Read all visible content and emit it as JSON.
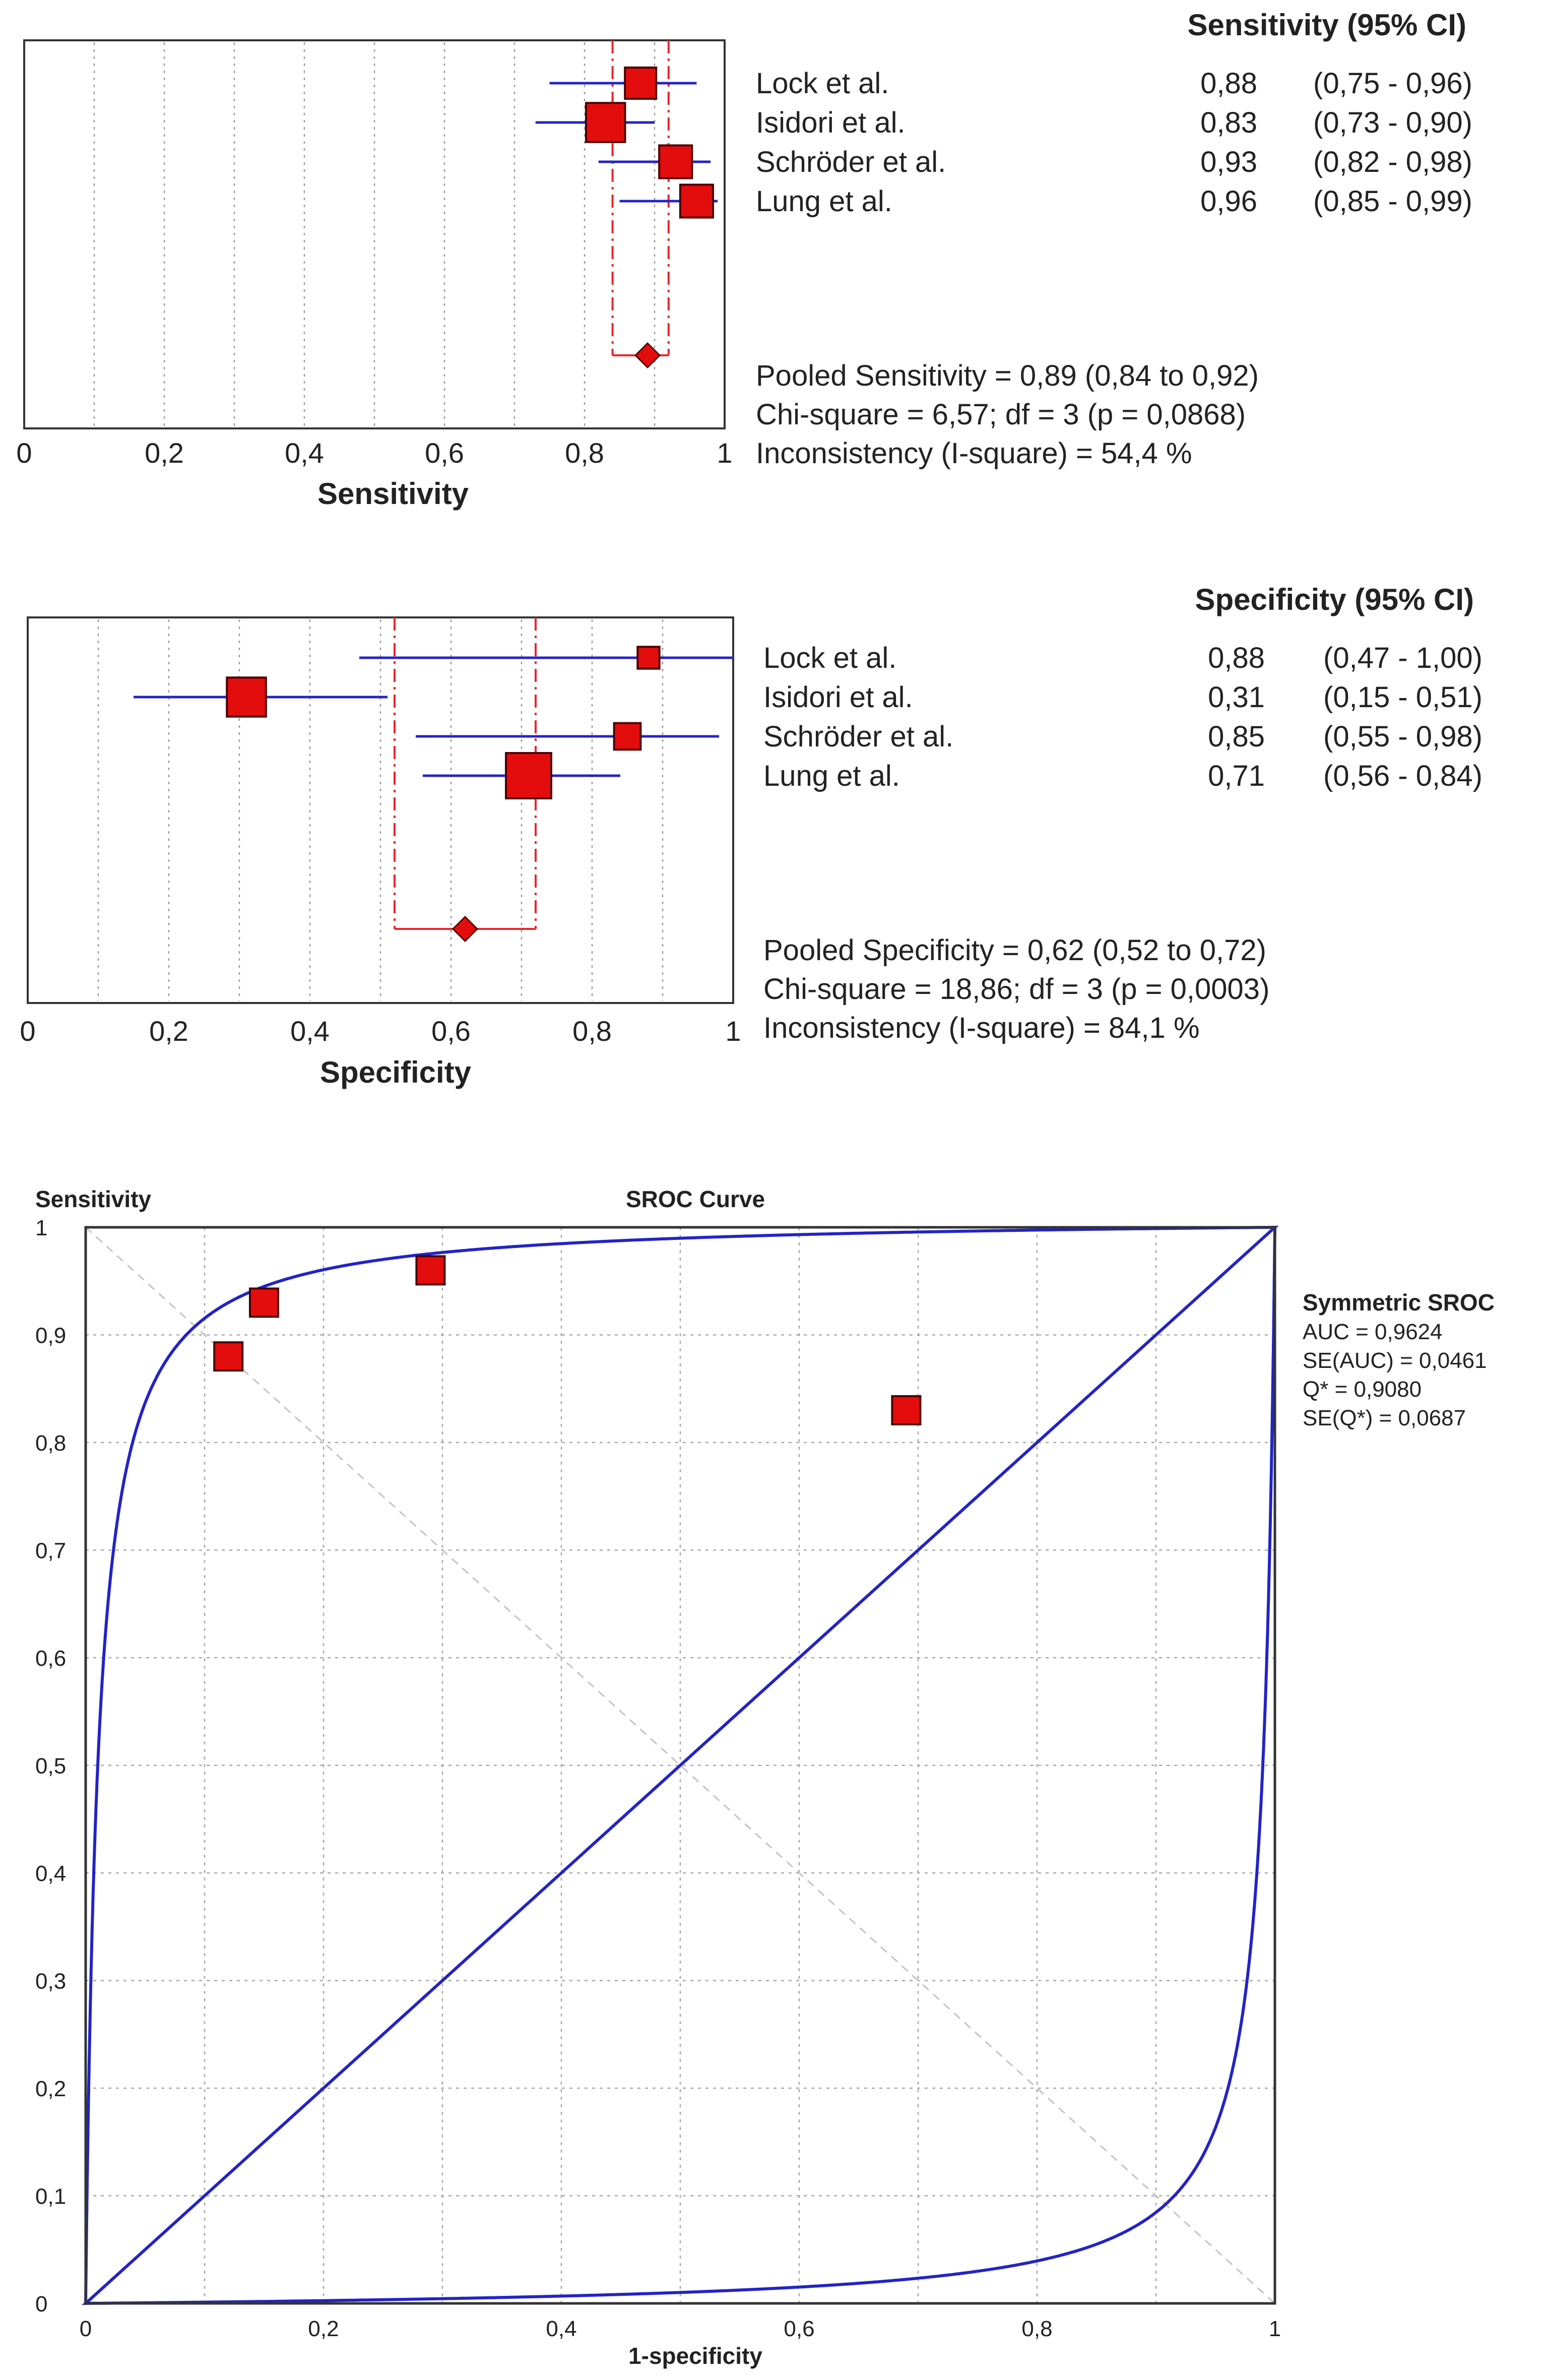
{
  "chart_data": [
    {
      "type": "forest",
      "xlabel": "Sensitivity",
      "xlim": [
        0,
        1
      ],
      "tick_labels": [
        "0",
        "0,2",
        "0,4",
        "0,6",
        "0,8",
        "1"
      ],
      "header": "Sensitivity (95% CI)",
      "studies": [
        {
          "name": "Lock et al.",
          "estimate": 0.88,
          "ci_low": 0.75,
          "ci_high": 0.96,
          "estimate_label": "0,88",
          "ci_label": "(0,75 - 0,96)",
          "weight": 1.0
        },
        {
          "name": "Isidori et al.",
          "estimate": 0.83,
          "ci_low": 0.73,
          "ci_high": 0.9,
          "estimate_label": "0,83",
          "ci_label": "(0,73 - 0,90)",
          "weight": 1.25
        },
        {
          "name": "Schröder et al.",
          "estimate": 0.93,
          "ci_low": 0.82,
          "ci_high": 0.98,
          "estimate_label": "0,93",
          "ci_label": "(0,82 - 0,98)",
          "weight": 1.05
        },
        {
          "name": "Lung et al.",
          "estimate": 0.96,
          "ci_low": 0.85,
          "ci_high": 0.99,
          "estimate_label": "0,96",
          "ci_label": "(0,85 - 0,99)",
          "weight": 1.05
        }
      ],
      "pooled": {
        "estimate": 0.89,
        "ci_low": 0.84,
        "ci_high": 0.92
      },
      "summary_lines": [
        "Pooled Sensitivity = 0,89 (0,84 to 0,92)",
        "Chi-square = 6,57; df =  3 (p = 0,0868)",
        "Inconsistency (I-square) = 54,4 %"
      ]
    },
    {
      "type": "forest",
      "xlabel": "Specificity",
      "xlim": [
        0,
        1
      ],
      "tick_labels": [
        "0",
        "0,2",
        "0,4",
        "0,6",
        "0,8",
        "1"
      ],
      "header": "Specificity (95% CI)",
      "studies": [
        {
          "name": "Lock et al.",
          "estimate": 0.88,
          "ci_low": 0.47,
          "ci_high": 1.0,
          "estimate_label": "0,88",
          "ci_label": "(0,47 - 1,00)",
          "weight": 0.7
        },
        {
          "name": "Isidori et al.",
          "estimate": 0.31,
          "ci_low": 0.15,
          "ci_high": 0.51,
          "estimate_label": "0,31",
          "ci_label": "(0,15 - 0,51)",
          "weight": 1.25
        },
        {
          "name": "Schröder et al.",
          "estimate": 0.85,
          "ci_low": 0.55,
          "ci_high": 0.98,
          "estimate_label": "0,85",
          "ci_label": "(0,55 - 0,98)",
          "weight": 0.85
        },
        {
          "name": "Lung et al.",
          "estimate": 0.71,
          "ci_low": 0.56,
          "ci_high": 0.84,
          "estimate_label": "0,71",
          "ci_label": "(0,56 - 0,84)",
          "weight": 1.45
        }
      ],
      "pooled": {
        "estimate": 0.62,
        "ci_low": 0.52,
        "ci_high": 0.72
      },
      "summary_lines": [
        "Pooled Specificity = 0,62 (0,52 to 0,72)",
        "Chi-square = 18,86; df =  3 (p = 0,0003)",
        "Inconsistency (I-square) = 84,1 %"
      ]
    },
    {
      "type": "sroc",
      "title": "SROC Curve",
      "xlabel": "1-specificity",
      "ylabel": "Sensitivity",
      "xlim": [
        0,
        1
      ],
      "ylim": [
        0,
        1
      ],
      "grid": true,
      "x_tick_labels": [
        "0",
        "0,2",
        "0,4",
        "0,6",
        "0,8",
        "1"
      ],
      "y_tick_labels": [
        "0",
        "0,1",
        "0,2",
        "0,3",
        "0,4",
        "0,5",
        "0,6",
        "0,7",
        "0,8",
        "0,9",
        "1"
      ],
      "points": [
        {
          "x": 0.12,
          "y": 0.88
        },
        {
          "x": 0.15,
          "y": 0.93
        },
        {
          "x": 0.29,
          "y": 0.96
        },
        {
          "x": 0.69,
          "y": 0.83
        }
      ],
      "curve": {
        "family": "symmetric-sroc",
        "auc": 0.9624,
        "q_star": 0.908
      },
      "legend_position": "right",
      "legend_lines": [
        "Symmetric SROC",
        "AUC = 0,9624",
        "SE(AUC) = 0,0461",
        "Q* = 0,9080",
        "SE(Q*) = 0,0687"
      ]
    }
  ]
}
